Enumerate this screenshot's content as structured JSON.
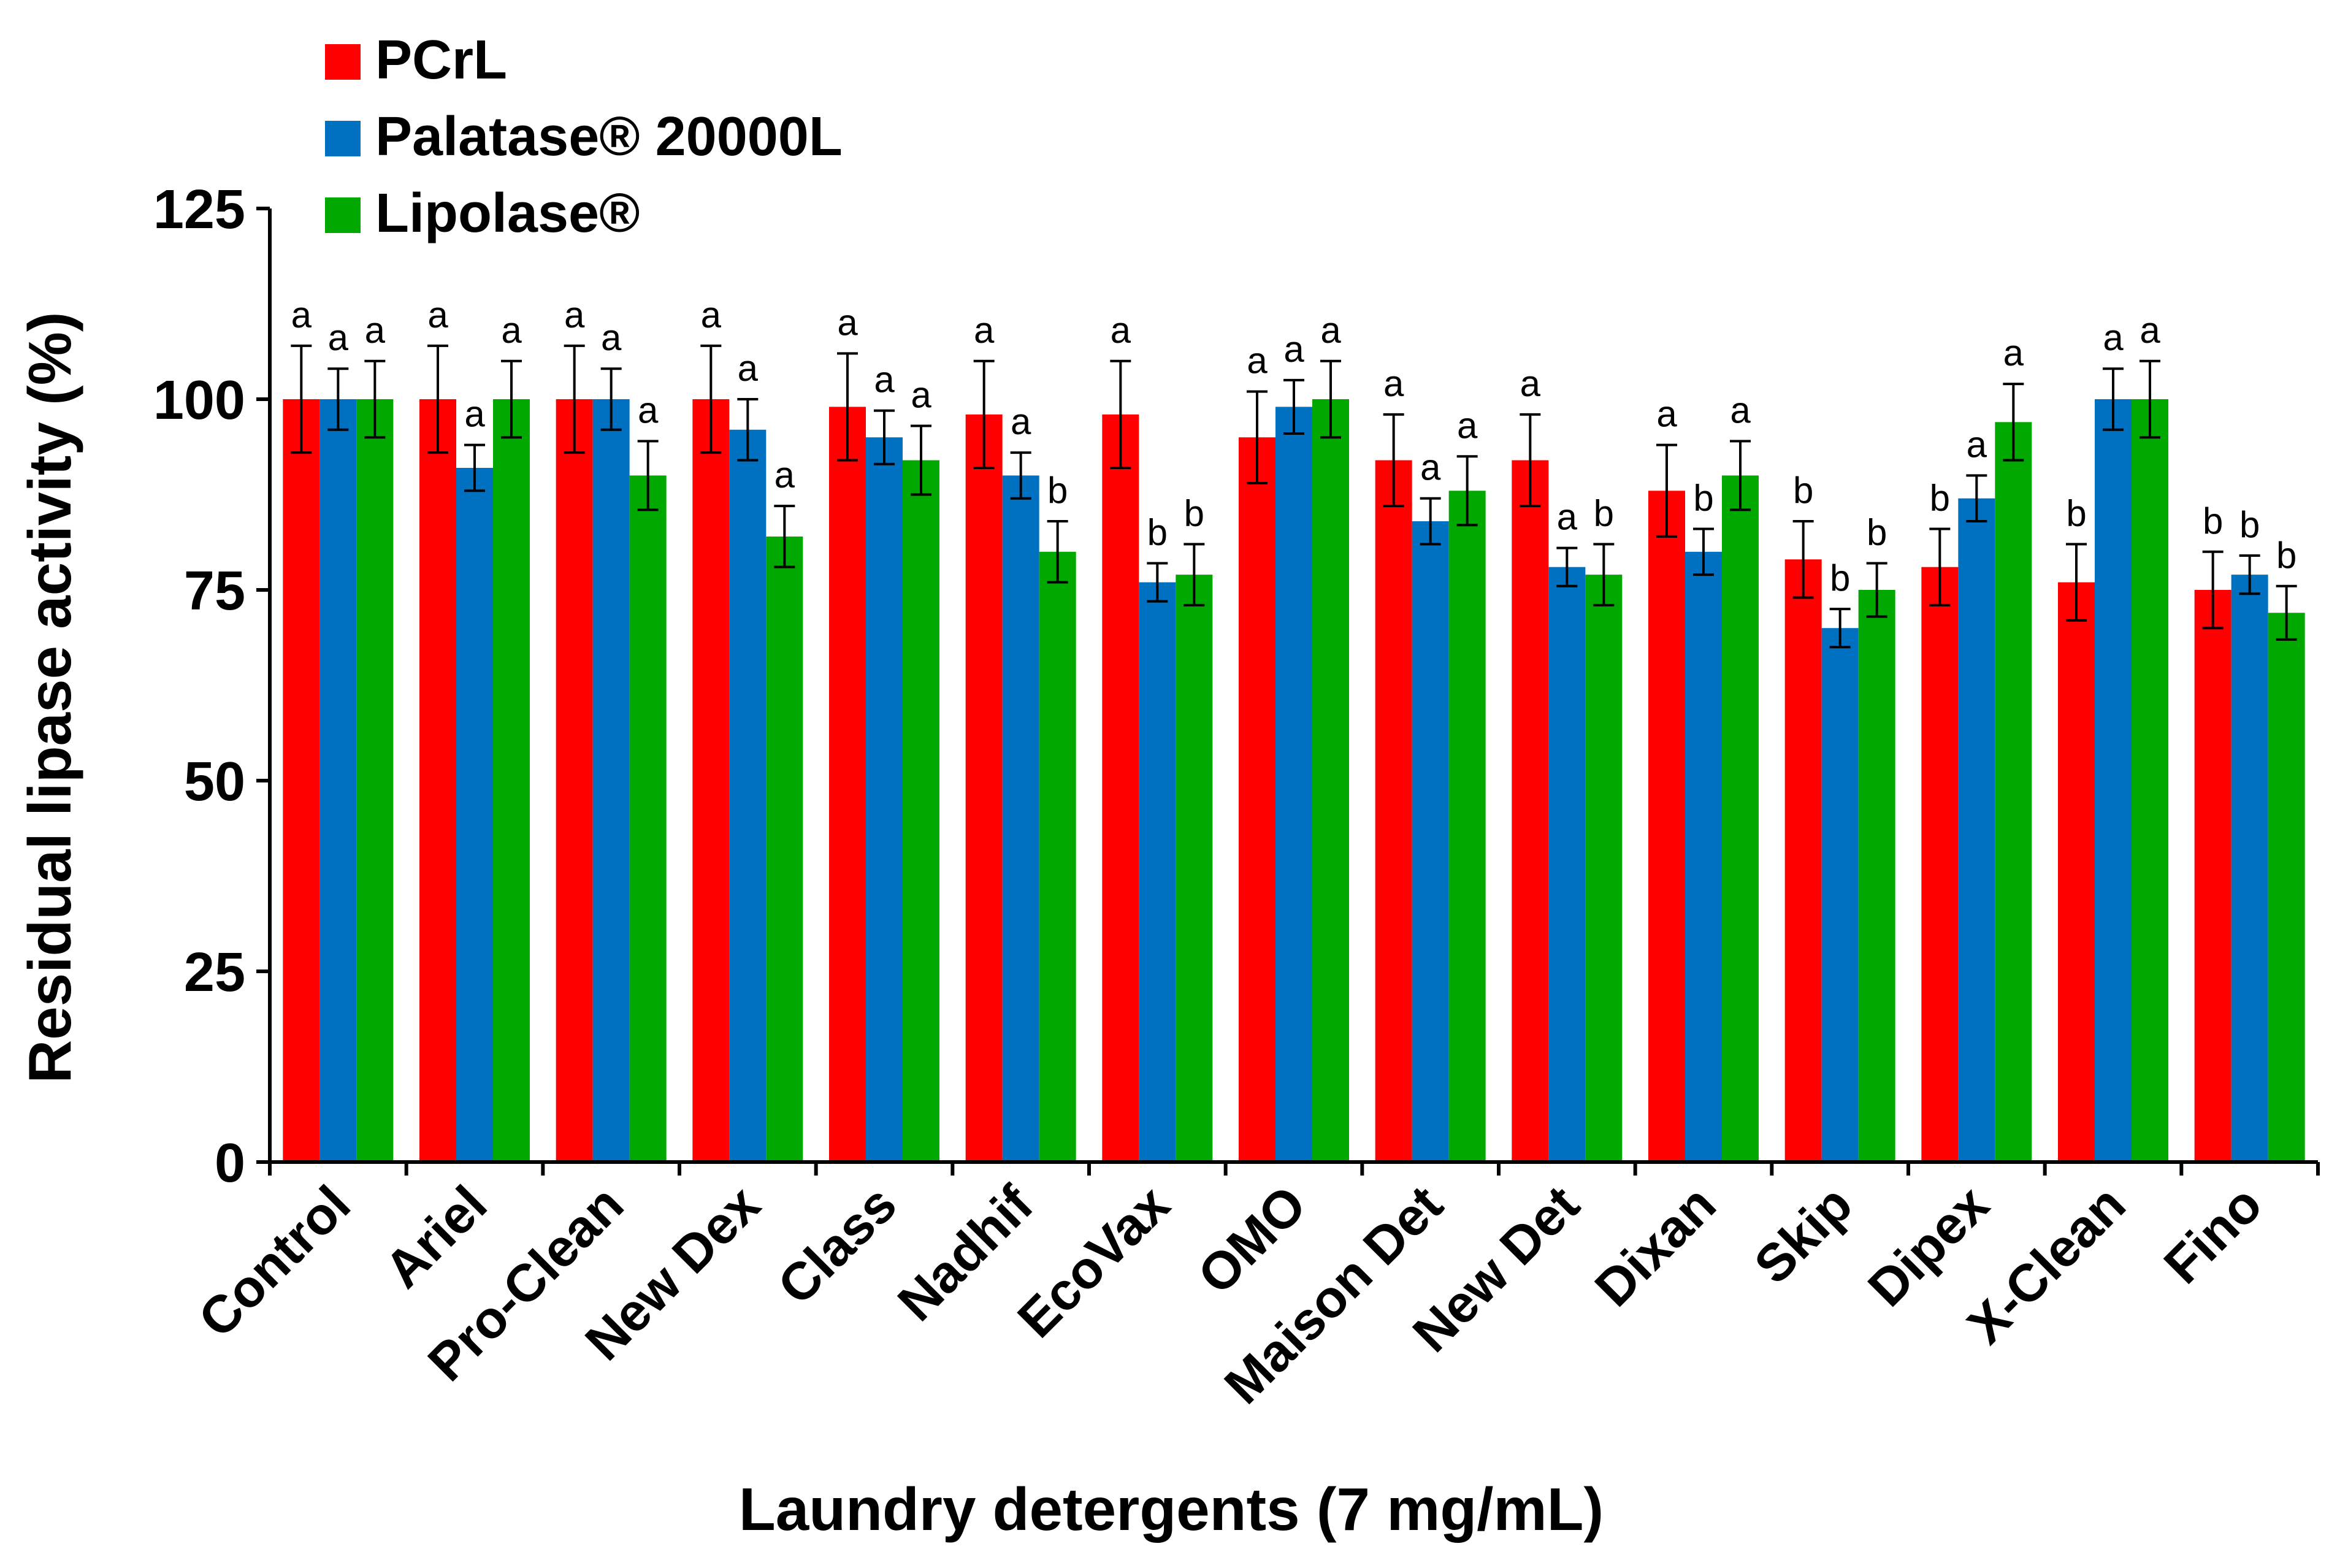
{
  "chart_data": {
    "type": "bar",
    "title": "",
    "xlabel": "Laundry detergents (7 mg/mL)",
    "ylabel": "Residual lipase activity (%)",
    "ylim": [
      0,
      125
    ],
    "yticks": [
      0,
      25,
      50,
      75,
      100,
      125
    ],
    "grid": false,
    "legend_position": "top-left",
    "categories": [
      "Control",
      "Ariel",
      "Pro-Clean",
      "New Dex",
      "Class",
      "Nadhif",
      "EcoVax",
      "OMO",
      "Maison Det",
      "New Det",
      "Dixan",
      "Skip",
      "Dipex",
      "X-Clean",
      "Fino"
    ],
    "series": [
      {
        "name": "PCrL",
        "color": "#ff0000",
        "values": [
          100,
          100,
          100,
          100,
          99,
          98,
          98,
          95,
          92,
          92,
          88,
          79,
          78,
          76,
          75
        ],
        "errors": [
          7,
          7,
          7,
          7,
          7,
          7,
          7,
          6,
          6,
          6,
          6,
          5,
          5,
          5,
          5
        ],
        "letters": [
          "a",
          "a",
          "a",
          "a",
          "a",
          "a",
          "a",
          "a",
          "a",
          "a",
          "a",
          "b",
          "b",
          "b",
          "b"
        ]
      },
      {
        "name": "Palatase® 20000L",
        "color": "#0070c0",
        "values": [
          100,
          91,
          100,
          96,
          95,
          90,
          76,
          99,
          84,
          78,
          80,
          70,
          87,
          100,
          77
        ],
        "errors": [
          4,
          3,
          4,
          4,
          3.5,
          3,
          2.5,
          3.5,
          3,
          2.5,
          3,
          2.5,
          3,
          4,
          2.5
        ],
        "letters": [
          "a",
          "a",
          "a",
          "a",
          "a",
          "a",
          "b",
          "a",
          "a",
          "a",
          "b",
          "b",
          "a",
          "a",
          "b"
        ]
      },
      {
        "name": "Lipolase®",
        "color": "#00a800",
        "values": [
          100,
          100,
          90,
          82,
          92,
          80,
          77,
          100,
          88,
          77,
          90,
          75,
          97,
          100,
          72
        ],
        "errors": [
          5,
          5,
          4.5,
          4,
          4.5,
          4,
          4,
          5,
          4.5,
          4,
          4.5,
          3.5,
          5,
          5,
          3.5
        ],
        "letters": [
          "a",
          "a",
          "a",
          "a",
          "a",
          "b",
          "b",
          "a",
          "a",
          "b",
          "a",
          "b",
          "a",
          "a",
          "b"
        ]
      }
    ]
  }
}
